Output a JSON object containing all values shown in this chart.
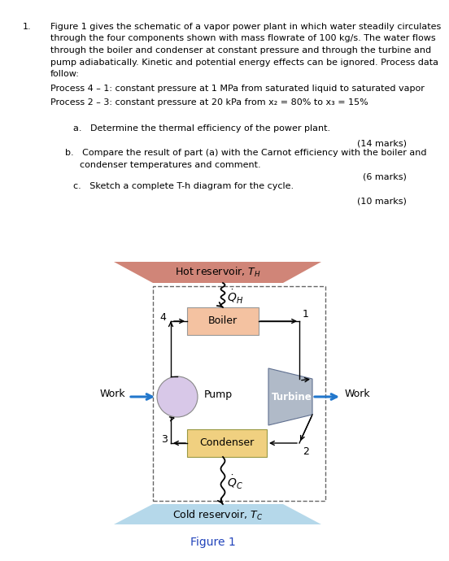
{
  "bg_color": "#ffffff",
  "text_color": "#000000",
  "fs_main": 8.0,
  "para1_lines": [
    "Figure 1 gives the schematic of a vapor power plant in which water steadily circulates",
    "through the four components shown with mass flowrate of 100 kg/s. The water flows",
    "through the boiler and condenser at constant pressure and through the turbine and",
    "pump adiabatically. Kinetic and potential energy effects can be ignored. Process data",
    "follow:"
  ],
  "process1": "Process 4 – 1: constant pressure at 1 MPa from saturated liquid to saturated vapor",
  "process2": "Process 2 – 3: constant pressure at 20 kPa from x₂ = 80% to x₃ = 15%",
  "qa_text": "a.   Determine the thermal efficiency of the power plant.",
  "marks_a": "(14 marks)",
  "qb_line1": "b.   Compare the result of part (a) with the Carnot efficiency with the boiler and",
  "qb_line2": "condenser temperatures and comment.",
  "marks_b": "(6 marks)",
  "qc_text": "c.   Sketch a complete T-h diagram for the cycle.",
  "marks_c": "(10 marks)",
  "hot_color": "#c87060",
  "cold_color": "#add4e8",
  "boiler_color": "#f4c2a1",
  "condenser_color": "#f0d080",
  "pump_color": "#d8c8e8",
  "turbine_color_light": "#b0bac8",
  "turbine_color_dark": "#7080a0",
  "work_arrow_color": "#2277cc",
  "figure_label_color": "#2244bb"
}
